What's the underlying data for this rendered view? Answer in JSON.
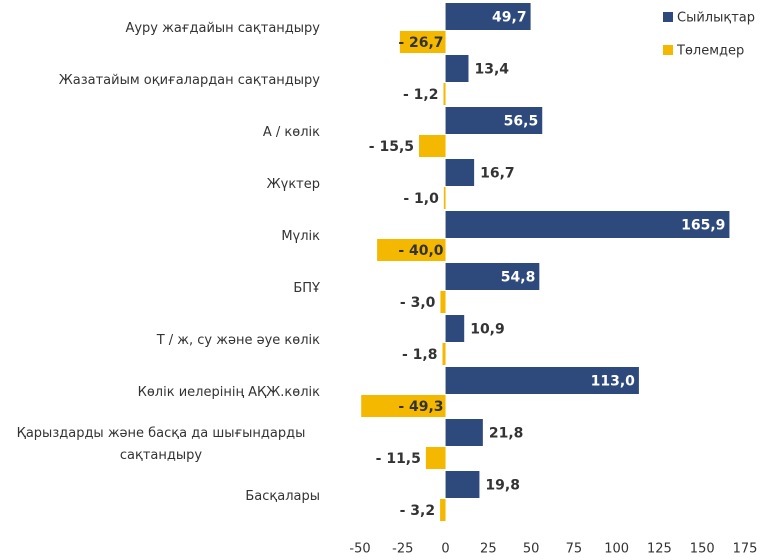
{
  "chart_data": {
    "type": "bar",
    "orientation": "horizontal",
    "categories": [
      "Ауру жағдайын сақтандыру",
      "Жазатайым оқиғалардан сақтандыру",
      "А / көлік",
      "Жүктер",
      "Мүлік",
      "БПҰ",
      "Т / ж, су және әуе көлік",
      "Көлік иелерінің АҚЖ.көлік",
      "Қарыздарды және басқа да шығындарды сақтандыру",
      "Басқалары"
    ],
    "series": [
      {
        "name": "Сыйлықтар",
        "color": "#2e4a7d",
        "values": [
          49.7,
          13.4,
          56.5,
          16.7,
          165.9,
          54.8,
          10.9,
          113.0,
          21.8,
          19.8
        ],
        "value_labels": [
          "49,7",
          "13,4",
          "56,5",
          "16,7",
          "165,9",
          "54,8",
          "10,9",
          "113,0",
          "21,8",
          "19,8"
        ]
      },
      {
        "name": "Төлемдер",
        "color": "#f5b800",
        "values": [
          -26.7,
          -1.2,
          -15.5,
          -1.0,
          -40.0,
          -3.0,
          -1.8,
          -49.3,
          -11.5,
          -3.2
        ],
        "value_labels": [
          "- 26,7",
          "- 1,2",
          "- 15,5",
          "- 1,0",
          "- 40,0",
          "- 3,0",
          "- 1,8",
          "- 49,3",
          "- 11,5",
          "- 3,2"
        ]
      }
    ],
    "xlim": [
      -50,
      175
    ],
    "xticks": [
      -50,
      -25,
      0,
      25,
      50,
      75,
      100,
      125,
      150,
      175
    ],
    "legend": "top-right"
  }
}
